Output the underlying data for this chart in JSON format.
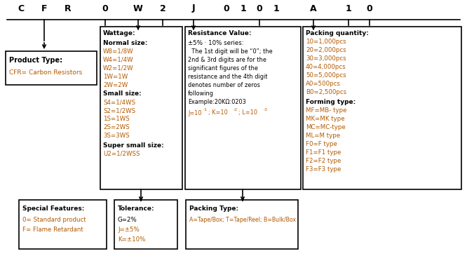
{
  "bg_color": "#ffffff",
  "bold_color": "#000000",
  "orange_color": "#b35900",
  "header_letters": [
    "C",
    "F",
    "R",
    "0",
    "W",
    "2",
    "J",
    "0",
    "1",
    "0",
    "1",
    "A",
    "1",
    "0"
  ],
  "product_type_title": "Product Type:",
  "product_type_text": "CFR= Carbon Resistors",
  "wattage_title": "Wattage:",
  "wattage_normal_title": "Normal size:",
  "wattage_normal": [
    "W8=1/8W",
    "W4=1/4W",
    "W2=1/2W",
    "1W=1W",
    "2W=2W"
  ],
  "wattage_small_title": "Small size:",
  "wattage_small": [
    "S4=1/4WS",
    "S2=1/2WS",
    "1S=1WS",
    "2S=2WS",
    "3S=3WS"
  ],
  "wattage_super_title": "Super small size:",
  "wattage_super": [
    "U2=1/2WSS"
  ],
  "resistance_title": "Resistance Value:",
  "resistance_line1": "±5% · 10% series:",
  "resistance_body": [
    "  The 1st digit will be “0”; the",
    "2nd & 3rd digits are for the",
    "significant figures of the",
    "resistance and the 4th digit",
    "denotes number of zeros",
    "following",
    "Example:20KΩ:0203"
  ],
  "packing_qty_title": "Packing quantity:",
  "packing_qty_lines": [
    "10=1,000pcs",
    "20=2,000pcs",
    "30=3,000pcs",
    "40=4,000pcs",
    "50=5,000pcs",
    "A0=500pcs",
    "B0=2,500pcs"
  ],
  "forming_title": "Forming type:",
  "forming_lines": [
    "MF=MB- type",
    "MK=MK type",
    "MC=MC-type",
    "ML=M type",
    "F0=F type",
    "F1=F1 type",
    "F2=F2 type",
    "F3=F3 type"
  ],
  "special_title": "Special Features:",
  "special_lines": [
    "0= Standard product",
    "F= Flame Retardant"
  ],
  "tolerance_title": "Tolerance:",
  "tolerance_lines": [
    "G=2%",
    "J=±5%",
    "K=±10%"
  ],
  "packing_type_title": "Packing Type:",
  "packing_type_text": "A=Tape/Box; T=Tape/Reel; B=Bulk/Box"
}
